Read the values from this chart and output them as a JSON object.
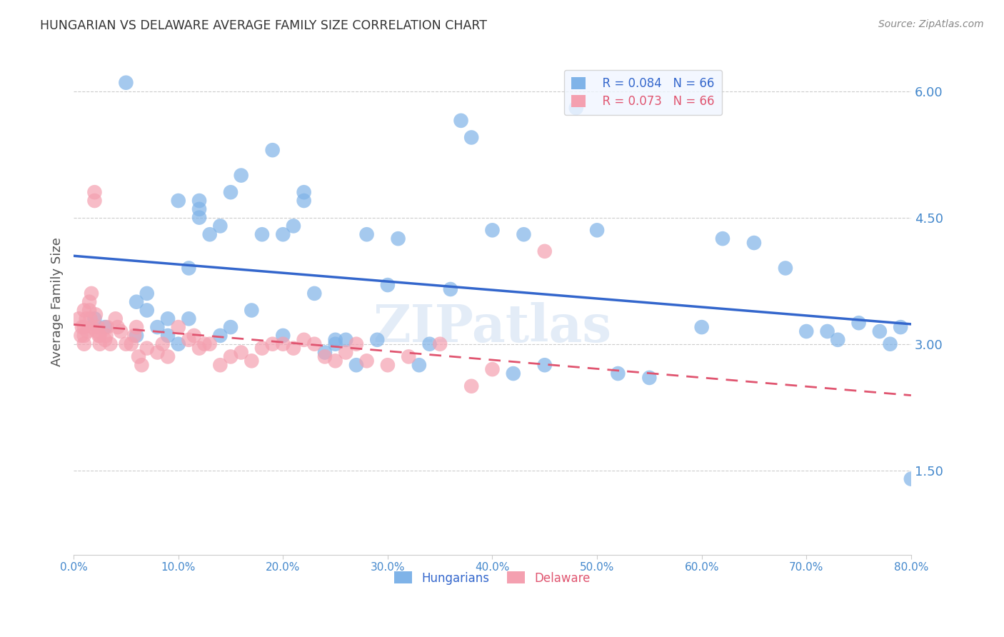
{
  "title": "HUNGARIAN VS DELAWARE AVERAGE FAMILY SIZE CORRELATION CHART",
  "source": "Source: ZipAtlas.com",
  "ylabel": "Average Family Size",
  "yticks_right": [
    1.5,
    3.0,
    4.5,
    6.0
  ],
  "legend_blue_r": "R = 0.084",
  "legend_blue_n": "N = 66",
  "legend_pink_r": "R = 0.073",
  "legend_pink_n": "N = 66",
  "legend_label_blue": "Hungarians",
  "legend_label_pink": "Delaware",
  "blue_color": "#7fb3e8",
  "pink_color": "#f4a0b0",
  "blue_line_color": "#3366cc",
  "pink_line_color": "#e05570",
  "background_color": "#ffffff",
  "grid_color": "#cccccc",
  "title_color": "#333333",
  "axis_label_color": "#4488cc",
  "watermark": "ZIPatlas",
  "blue_scatter_x": [
    0.02,
    0.03,
    0.05,
    0.06,
    0.06,
    0.07,
    0.07,
    0.08,
    0.09,
    0.09,
    0.1,
    0.1,
    0.11,
    0.11,
    0.12,
    0.12,
    0.12,
    0.13,
    0.14,
    0.14,
    0.15,
    0.15,
    0.16,
    0.17,
    0.18,
    0.19,
    0.2,
    0.2,
    0.21,
    0.22,
    0.22,
    0.23,
    0.24,
    0.25,
    0.25,
    0.26,
    0.27,
    0.28,
    0.29,
    0.3,
    0.31,
    0.33,
    0.34,
    0.36,
    0.37,
    0.38,
    0.4,
    0.42,
    0.43,
    0.45,
    0.48,
    0.5,
    0.52,
    0.55,
    0.6,
    0.62,
    0.65,
    0.68,
    0.7,
    0.72,
    0.73,
    0.75,
    0.77,
    0.78,
    0.79,
    0.8
  ],
  "blue_scatter_y": [
    3.3,
    3.2,
    6.1,
    3.1,
    3.5,
    3.4,
    3.6,
    3.2,
    3.1,
    3.3,
    4.7,
    3.0,
    3.9,
    3.3,
    4.5,
    4.6,
    4.7,
    4.3,
    3.1,
    4.4,
    4.8,
    3.2,
    5.0,
    3.4,
    4.3,
    5.3,
    4.3,
    3.1,
    4.4,
    4.8,
    4.7,
    3.6,
    2.9,
    3.05,
    3.0,
    3.05,
    2.75,
    4.3,
    3.05,
    3.7,
    4.25,
    2.75,
    3.0,
    3.65,
    5.65,
    5.45,
    4.35,
    2.65,
    4.3,
    2.75,
    5.8,
    4.35,
    2.65,
    2.6,
    3.2,
    4.25,
    4.2,
    3.9,
    3.15,
    3.15,
    3.05,
    3.25,
    3.15,
    3.0,
    3.2,
    1.4
  ],
  "pink_scatter_x": [
    0.005,
    0.007,
    0.008,
    0.01,
    0.01,
    0.01,
    0.01,
    0.012,
    0.013,
    0.015,
    0.015,
    0.016,
    0.017,
    0.018,
    0.02,
    0.02,
    0.021,
    0.022,
    0.023,
    0.024,
    0.025,
    0.025,
    0.03,
    0.031,
    0.032,
    0.035,
    0.04,
    0.042,
    0.045,
    0.05,
    0.055,
    0.058,
    0.06,
    0.062,
    0.065,
    0.07,
    0.08,
    0.085,
    0.09,
    0.1,
    0.11,
    0.115,
    0.12,
    0.125,
    0.13,
    0.14,
    0.15,
    0.16,
    0.17,
    0.18,
    0.19,
    0.2,
    0.21,
    0.22,
    0.23,
    0.24,
    0.25,
    0.26,
    0.27,
    0.28,
    0.3,
    0.32,
    0.35,
    0.38,
    0.4,
    0.45
  ],
  "pink_scatter_y": [
    3.3,
    3.1,
    3.2,
    3.4,
    3.2,
    3.1,
    3.0,
    3.3,
    3.15,
    3.5,
    3.4,
    3.3,
    3.6,
    3.2,
    4.7,
    4.8,
    3.35,
    3.15,
    3.2,
    3.1,
    3.0,
    3.1,
    3.05,
    3.1,
    3.2,
    3.0,
    3.3,
    3.2,
    3.15,
    3.0,
    3.0,
    3.1,
    3.2,
    2.85,
    2.75,
    2.95,
    2.9,
    3.0,
    2.85,
    3.2,
    3.05,
    3.1,
    2.95,
    3.0,
    3.0,
    2.75,
    2.85,
    2.9,
    2.8,
    2.95,
    3.0,
    3.0,
    2.95,
    3.05,
    3.0,
    2.85,
    2.8,
    2.9,
    3.0,
    2.8,
    2.75,
    2.85,
    3.0,
    2.5,
    2.7,
    4.1
  ],
  "xmin": 0.0,
  "xmax": 0.8,
  "ymin": 0.5,
  "ymax": 6.5,
  "figwidth": 14.06,
  "figheight": 8.92
}
